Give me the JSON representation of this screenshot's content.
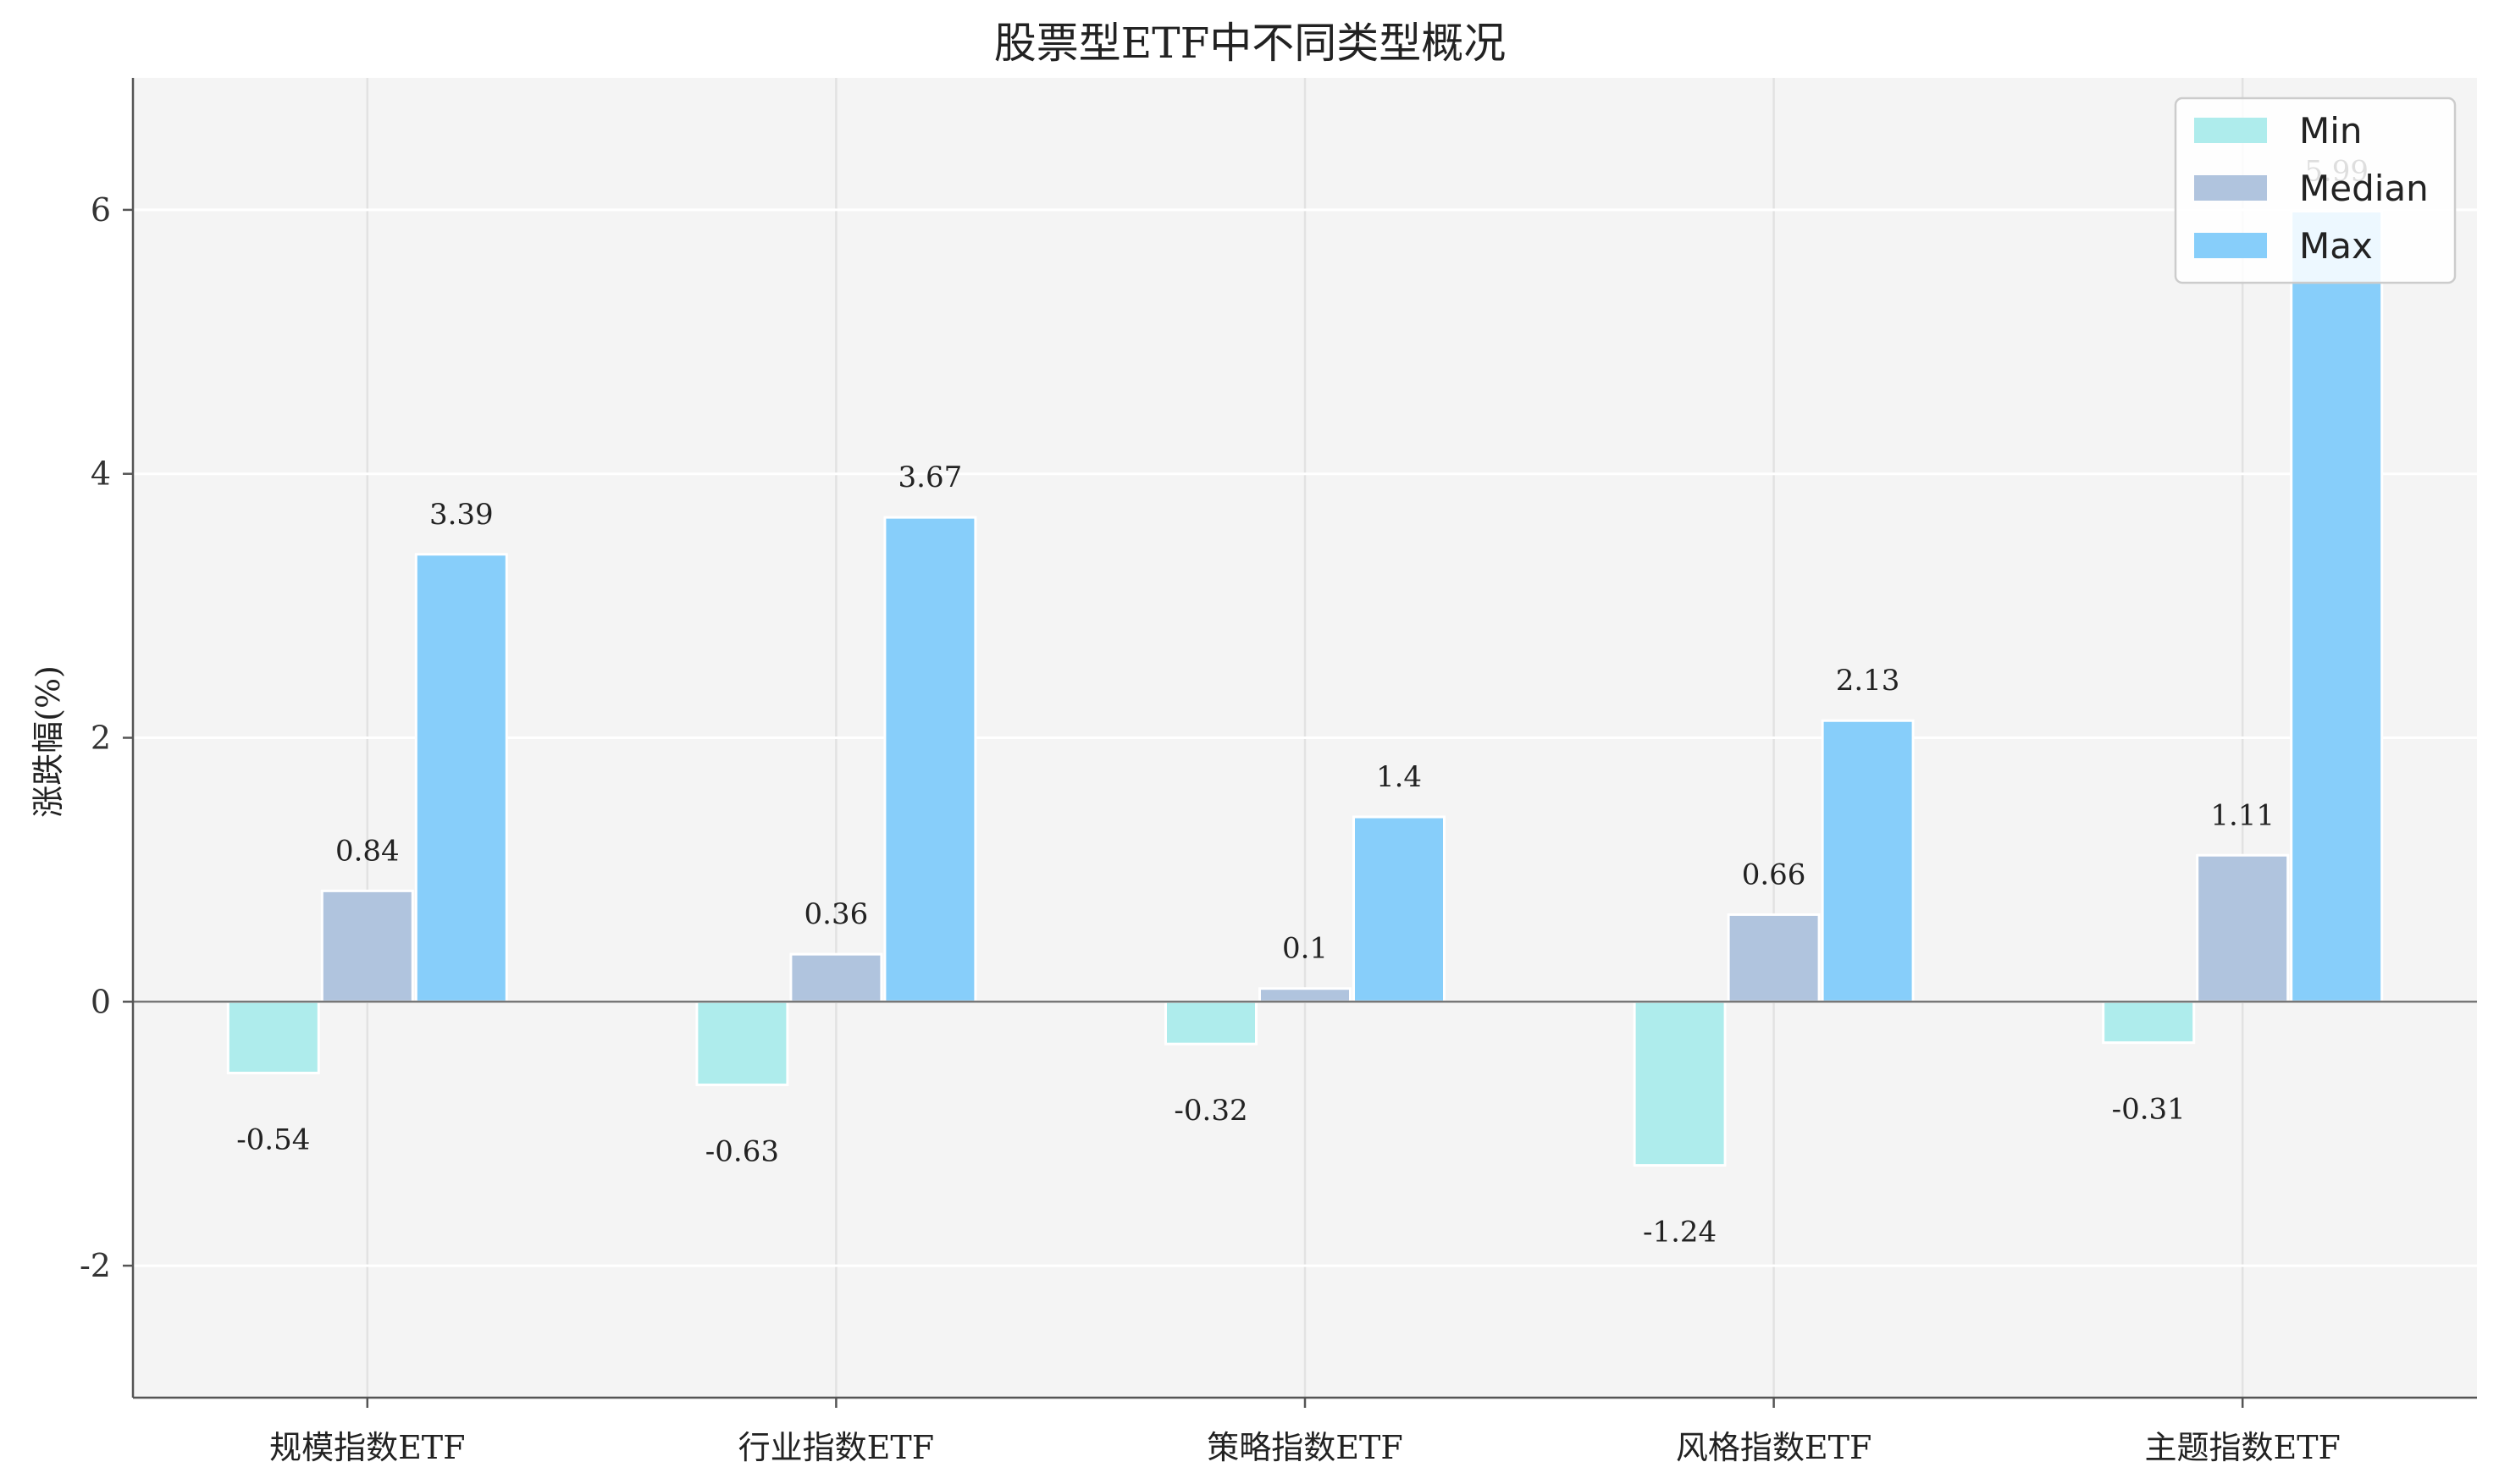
{
  "chart_data": {
    "type": "bar",
    "title": "股票型ETF中不同类型概况",
    "xlabel": "",
    "ylabel": "涨跌幅(%)",
    "categories": [
      "规模指数ETF",
      "行业指数ETF",
      "策略指数ETF",
      "风格指数ETF",
      "主题指数ETF"
    ],
    "series": [
      {
        "name": "Min",
        "color": "#aeecec",
        "values": [
          -0.54,
          -0.63,
          -0.32,
          -1.24,
          -0.31
        ],
        "labels": [
          "-0.54",
          "-0.63",
          "-0.32",
          "-1.24",
          "-0.31"
        ]
      },
      {
        "name": "Median",
        "color": "#b0c4de",
        "values": [
          0.84,
          0.36,
          0.1,
          0.66,
          1.11
        ],
        "labels": [
          "0.84",
          "0.36",
          "0.1",
          "0.66",
          "1.11"
        ]
      },
      {
        "name": "Max",
        "color": "#87cefa",
        "values": [
          3.39,
          3.67,
          1.4,
          2.13,
          5.99
        ],
        "labels": [
          "3.39",
          "3.67",
          "1.4",
          "2.13",
          "5.99"
        ]
      }
    ],
    "ylim": [
      -3,
      7
    ],
    "yticks": [
      -2,
      0,
      2,
      4,
      6
    ],
    "ytick_labels": [
      "-2",
      "0",
      "2",
      "4",
      "6"
    ],
    "grid": true,
    "legend_position": "top-right",
    "background_color": "#f4f4f4"
  }
}
